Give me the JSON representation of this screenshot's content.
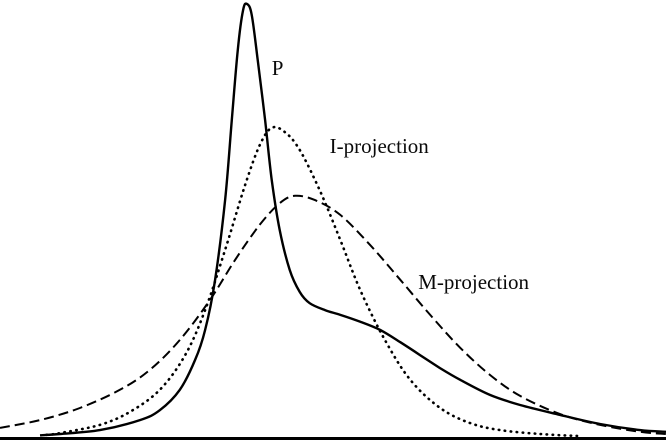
{
  "page": {
    "background": "#ffffff",
    "ink_color": "#000000"
  },
  "chart_data": {
    "type": "line",
    "title": "",
    "xlabel": "",
    "ylabel": "",
    "xlim": [
      0,
      10
    ],
    "ylim": [
      0,
      1.05
    ],
    "grid": false,
    "legend_position": "none",
    "axis": {
      "x_axis_visible": true,
      "y_axis_visible": false,
      "color": "#000000"
    },
    "series": [
      {
        "name": "M-projection",
        "line_style": "dashed",
        "color": "#000000",
        "points": [
          [
            0.0,
            0.021
          ],
          [
            0.6,
            0.039
          ],
          [
            1.2,
            0.067
          ],
          [
            1.8,
            0.109
          ],
          [
            2.25,
            0.155
          ],
          [
            2.7,
            0.224
          ],
          [
            3.15,
            0.316
          ],
          [
            3.53,
            0.409
          ],
          [
            3.9,
            0.49
          ],
          [
            4.2,
            0.54
          ],
          [
            4.43,
            0.557
          ],
          [
            4.73,
            0.547
          ],
          [
            5.11,
            0.513
          ],
          [
            5.56,
            0.443
          ],
          [
            6.01,
            0.363
          ],
          [
            6.46,
            0.282
          ],
          [
            6.91,
            0.206
          ],
          [
            7.36,
            0.143
          ],
          [
            7.81,
            0.095
          ],
          [
            8.41,
            0.053
          ],
          [
            9.01,
            0.028
          ],
          [
            9.61,
            0.012
          ],
          [
            10.0,
            0.007
          ]
        ]
      },
      {
        "name": "I-projection",
        "line_style": "dotted",
        "color": "#000000",
        "points": [
          [
            0.7,
            0.005
          ],
          [
            0.9,
            0.009
          ],
          [
            1.5,
            0.028
          ],
          [
            1.95,
            0.058
          ],
          [
            2.4,
            0.109
          ],
          [
            2.78,
            0.189
          ],
          [
            3.08,
            0.293
          ],
          [
            3.38,
            0.432
          ],
          [
            3.68,
            0.582
          ],
          [
            3.9,
            0.674
          ],
          [
            4.08,
            0.714
          ],
          [
            4.28,
            0.704
          ],
          [
            4.5,
            0.663
          ],
          [
            4.8,
            0.57
          ],
          [
            5.11,
            0.455
          ],
          [
            5.41,
            0.339
          ],
          [
            5.78,
            0.224
          ],
          [
            6.16,
            0.132
          ],
          [
            6.61,
            0.067
          ],
          [
            7.06,
            0.032
          ],
          [
            7.51,
            0.016
          ],
          [
            8.11,
            0.007
          ],
          [
            8.71,
            0.002
          ]
        ]
      },
      {
        "name": "P",
        "line_style": "solid",
        "color": "#000000",
        "points": [
          [
            0.6,
            0.004
          ],
          [
            0.9,
            0.007
          ],
          [
            1.5,
            0.016
          ],
          [
            2.1,
            0.039
          ],
          [
            2.4,
            0.062
          ],
          [
            2.7,
            0.109
          ],
          [
            2.93,
            0.178
          ],
          [
            3.08,
            0.247
          ],
          [
            3.23,
            0.363
          ],
          [
            3.38,
            0.547
          ],
          [
            3.48,
            0.732
          ],
          [
            3.57,
            0.894
          ],
          [
            3.65,
            0.986
          ],
          [
            3.71,
            1.0
          ],
          [
            3.78,
            0.975
          ],
          [
            3.87,
            0.871
          ],
          [
            3.98,
            0.732
          ],
          [
            4.08,
            0.594
          ],
          [
            4.2,
            0.478
          ],
          [
            4.35,
            0.386
          ],
          [
            4.5,
            0.335
          ],
          [
            4.65,
            0.309
          ],
          [
            4.88,
            0.293
          ],
          [
            5.11,
            0.282
          ],
          [
            5.41,
            0.266
          ],
          [
            5.71,
            0.247
          ],
          [
            6.01,
            0.219
          ],
          [
            6.31,
            0.189
          ],
          [
            6.61,
            0.159
          ],
          [
            6.91,
            0.132
          ],
          [
            7.36,
            0.097
          ],
          [
            7.81,
            0.074
          ],
          [
            8.41,
            0.051
          ],
          [
            9.01,
            0.03
          ],
          [
            9.61,
            0.016
          ],
          [
            10.0,
            0.012
          ]
        ]
      }
    ],
    "annotations": [
      {
        "text": "P",
        "x": 4.08,
        "y": 0.875
      },
      {
        "text": "I-projection",
        "x": 4.95,
        "y": 0.695
      },
      {
        "text": "M-projection",
        "x": 6.28,
        "y": 0.382
      }
    ]
  }
}
